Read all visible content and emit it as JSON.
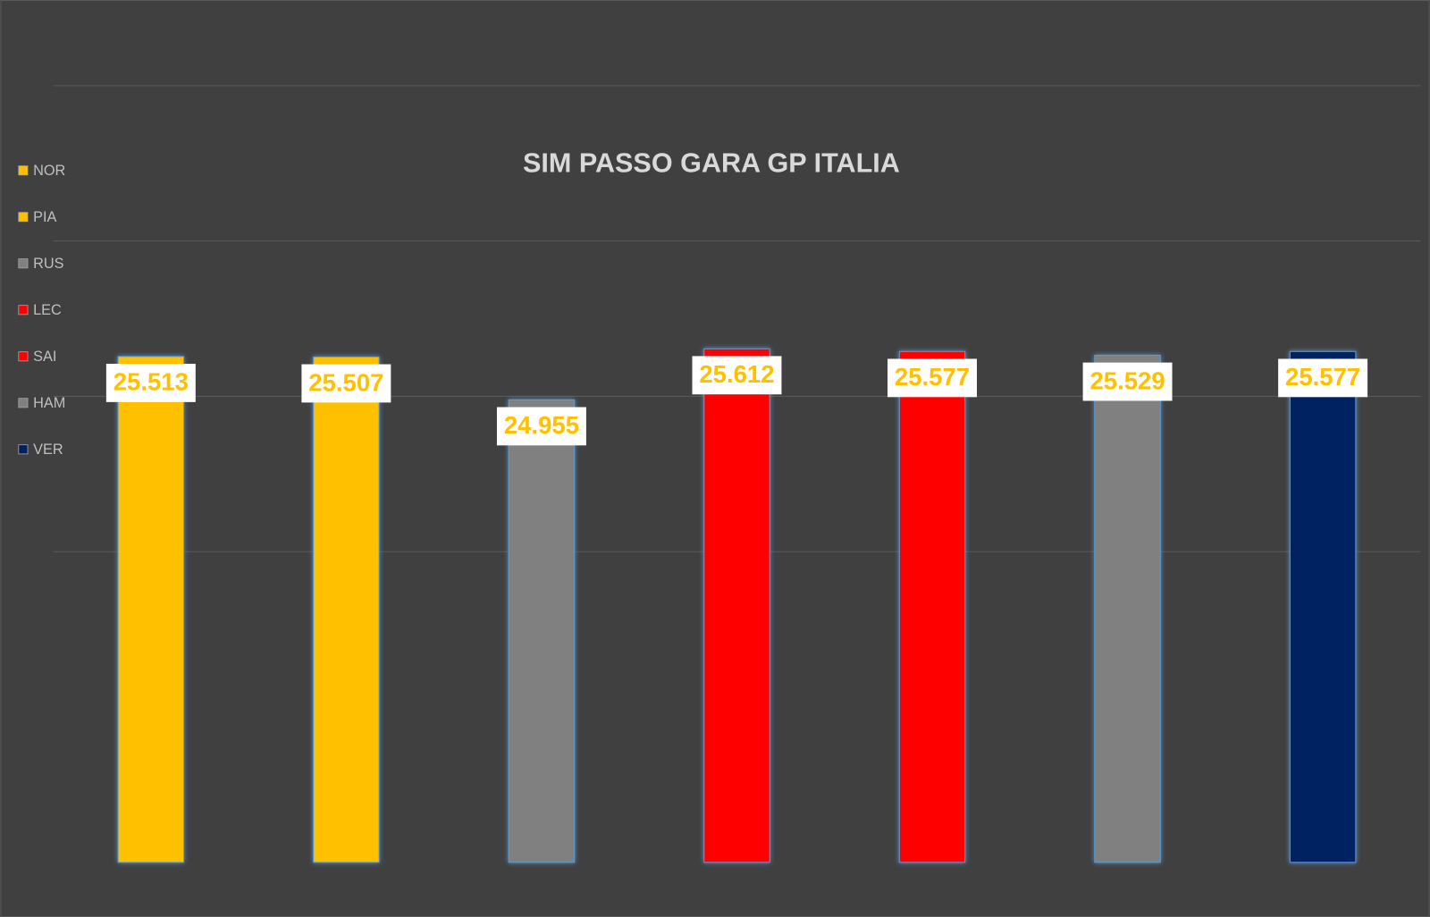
{
  "chart_data": {
    "type": "bar",
    "title": "SIM PASSO GARA GP ITALIA",
    "categories": [
      "NOR",
      "PIA",
      "RUS",
      "LEC",
      "SAI",
      "HAM",
      "VER"
    ],
    "values": [
      25.513,
      25.507,
      24.955,
      25.612,
      25.577,
      25.529,
      25.577
    ],
    "colors": [
      "#ffc000",
      "#ffc000",
      "#808080",
      "#ff0000",
      "#ff0000",
      "#808080",
      "#002060"
    ],
    "ylim": [
      19,
      29
    ],
    "yticks": [
      23,
      25,
      27,
      29
    ],
    "grid": true,
    "legend": "left"
  }
}
